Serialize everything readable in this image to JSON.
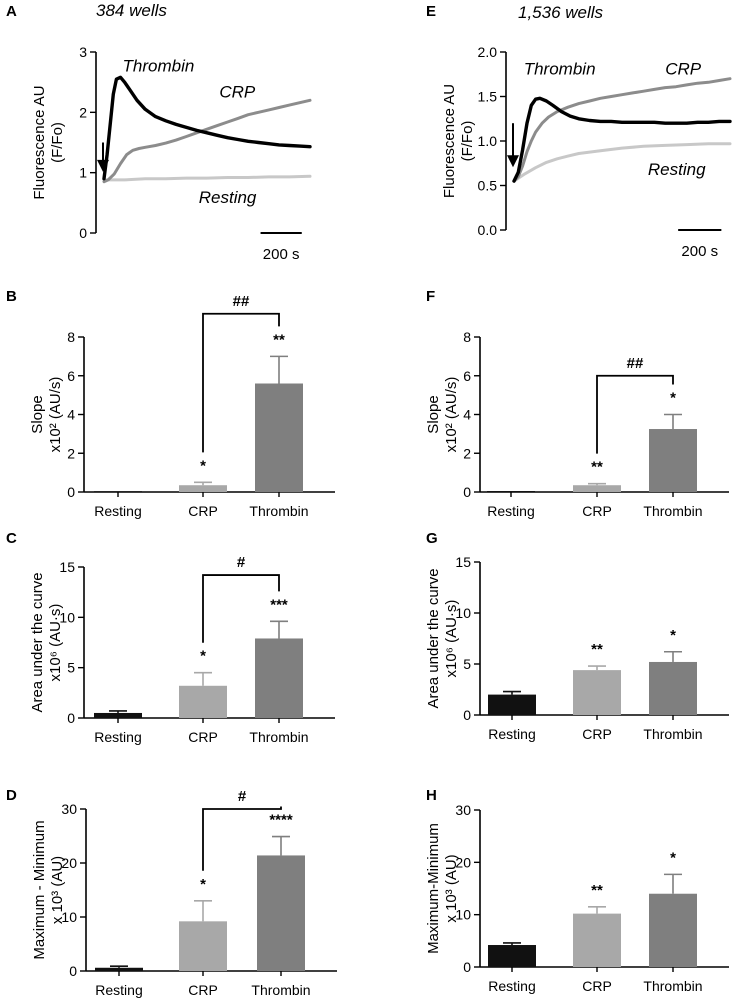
{
  "colors": {
    "resting_bar": "#111111",
    "crp_bar": "#a8a8a8",
    "thrombin_bar": "#7f7f7f",
    "axis": "#000000",
    "thrombin_trace": "#000000",
    "crp_trace": "#8c8c8c",
    "resting_trace": "#c8c8c8"
  },
  "chart_data": [
    {
      "id": "A",
      "letter": "A",
      "type": "line",
      "subtitle": "384 wells",
      "ylabel_lines": [
        "Fluorescence AU",
        "(F/Fo)"
      ],
      "ylim": [
        0,
        3
      ],
      "yticks": [
        0,
        1,
        2,
        3
      ],
      "ytick_labels": [
        "0",
        "1",
        "2",
        "3"
      ],
      "xlim": [
        0,
        1000
      ],
      "scale_bar": {
        "length": 200,
        "label": "200 s"
      },
      "series": [
        {
          "name": "Thrombin",
          "color": "#000000",
          "x": [
            0,
            15,
            30,
            45,
            60,
            80,
            100,
            130,
            160,
            200,
            250,
            300,
            350,
            400,
            450,
            500,
            550,
            600,
            650,
            700,
            750,
            800,
            850,
            900,
            950,
            1000
          ],
          "y": [
            0.9,
            1.3,
            1.8,
            2.3,
            2.55,
            2.58,
            2.5,
            2.35,
            2.2,
            2.05,
            1.93,
            1.86,
            1.8,
            1.75,
            1.7,
            1.66,
            1.62,
            1.58,
            1.55,
            1.52,
            1.5,
            1.48,
            1.46,
            1.45,
            1.44,
            1.43
          ]
        },
        {
          "name": "CRP",
          "color": "#8c8c8c",
          "x": [
            0,
            20,
            50,
            80,
            110,
            140,
            170,
            200,
            250,
            300,
            350,
            400,
            450,
            500,
            550,
            600,
            650,
            700,
            750,
            800,
            850,
            900,
            950,
            1000
          ],
          "y": [
            0.85,
            0.88,
            0.98,
            1.15,
            1.3,
            1.37,
            1.4,
            1.42,
            1.45,
            1.49,
            1.54,
            1.6,
            1.66,
            1.72,
            1.78,
            1.84,
            1.9,
            1.96,
            2.0,
            2.04,
            2.08,
            2.12,
            2.16,
            2.2
          ]
        },
        {
          "name": "Resting",
          "color": "#c8c8c8",
          "x": [
            0,
            100,
            200,
            300,
            400,
            500,
            600,
            700,
            800,
            900,
            1000
          ],
          "y": [
            0.88,
            0.88,
            0.9,
            0.9,
            0.91,
            0.91,
            0.92,
            0.92,
            0.93,
            0.93,
            0.94
          ]
        }
      ],
      "labels": [
        {
          "text": "Thrombin",
          "x": 90,
          "y": 2.68
        },
        {
          "text": "CRP",
          "x": 560,
          "y": 2.25
        },
        {
          "text": "Resting",
          "x": 460,
          "y": 0.5
        }
      ]
    },
    {
      "id": "E",
      "letter": "E",
      "type": "line",
      "subtitle": "1,536 wells",
      "ylabel_lines": [
        "Fluorescence AU",
        "(F/Fo)"
      ],
      "ylim": [
        0,
        2
      ],
      "yticks": [
        0,
        0.5,
        1,
        1.5,
        2
      ],
      "ytick_labels": [
        "0.0",
        "0.5",
        "1.0",
        "1.5",
        "2.0"
      ],
      "xlim": [
        0,
        1000
      ],
      "scale_bar": {
        "length": 200,
        "label": "200 s"
      },
      "series": [
        {
          "name": "Thrombin",
          "color": "#000000",
          "x": [
            0,
            20,
            40,
            60,
            80,
            100,
            120,
            150,
            180,
            220,
            260,
            300,
            350,
            400,
            450,
            500,
            550,
            600,
            650,
            700,
            750,
            800,
            850,
            900,
            950,
            1000
          ],
          "y": [
            0.55,
            0.65,
            0.9,
            1.2,
            1.4,
            1.47,
            1.48,
            1.45,
            1.4,
            1.33,
            1.28,
            1.25,
            1.23,
            1.22,
            1.22,
            1.21,
            1.21,
            1.21,
            1.21,
            1.2,
            1.2,
            1.2,
            1.21,
            1.21,
            1.22,
            1.22
          ]
        },
        {
          "name": "CRP",
          "color": "#8c8c8c",
          "x": [
            0,
            20,
            40,
            60,
            80,
            100,
            130,
            160,
            200,
            250,
            300,
            350,
            400,
            450,
            500,
            550,
            600,
            650,
            700,
            750,
            800,
            850,
            900,
            950,
            1000
          ],
          "y": [
            0.55,
            0.6,
            0.72,
            0.88,
            1.0,
            1.1,
            1.2,
            1.27,
            1.33,
            1.38,
            1.42,
            1.45,
            1.48,
            1.5,
            1.52,
            1.54,
            1.56,
            1.58,
            1.6,
            1.61,
            1.63,
            1.65,
            1.66,
            1.68,
            1.7
          ]
        },
        {
          "name": "Resting",
          "color": "#c8c8c8",
          "x": [
            0,
            50,
            100,
            150,
            200,
            250,
            300,
            400,
            500,
            600,
            700,
            800,
            900,
            1000
          ],
          "y": [
            0.55,
            0.63,
            0.7,
            0.76,
            0.8,
            0.83,
            0.86,
            0.89,
            0.92,
            0.94,
            0.95,
            0.96,
            0.97,
            0.97
          ]
        }
      ],
      "labels": [
        {
          "text": "Thrombin",
          "x": 45,
          "y": 1.75
        },
        {
          "text": "CRP",
          "x": 700,
          "y": 1.75
        },
        {
          "text": "Resting",
          "x": 620,
          "y": 0.62
        }
      ]
    },
    {
      "id": "B",
      "letter": "B",
      "type": "bar",
      "ylabel_lines": [
        "Slope",
        "x10² (AU/s)"
      ],
      "ylim": [
        0,
        8
      ],
      "yticks": [
        0,
        2,
        4,
        6,
        8
      ],
      "ytick_labels": [
        "0",
        "2",
        "4",
        "6",
        "8"
      ],
      "categories": [
        "Resting",
        "CRP",
        "Thrombin"
      ],
      "values": [
        0,
        0.35,
        5.6
      ],
      "errors": [
        0,
        0.15,
        1.4
      ],
      "stars": [
        "",
        "*",
        "**"
      ],
      "brackets": [
        {
          "from": 1,
          "to": 2,
          "label": "##",
          "y": 9.2
        }
      ]
    },
    {
      "id": "F",
      "letter": "F",
      "type": "bar",
      "ylabel_lines": [
        "Slope",
        "x10² (AU/s)"
      ],
      "ylim": [
        0,
        8
      ],
      "yticks": [
        0,
        2,
        4,
        6,
        8
      ],
      "ytick_labels": [
        "0",
        "2",
        "4",
        "6",
        "8"
      ],
      "categories": [
        "Resting",
        "CRP",
        "Thrombin"
      ],
      "values": [
        0.05,
        0.35,
        3.25
      ],
      "errors": [
        0,
        0.08,
        0.75
      ],
      "stars": [
        "",
        "**",
        "*"
      ],
      "brackets": [
        {
          "from": 1,
          "to": 2,
          "label": "##",
          "y": 6.0
        }
      ]
    },
    {
      "id": "C",
      "letter": "C",
      "type": "bar",
      "ylabel_lines": [
        "Area under the curve",
        "x10⁶ (AU·s)"
      ],
      "ylim": [
        0,
        15
      ],
      "yticks": [
        0,
        5,
        10,
        15
      ],
      "ytick_labels": [
        "0",
        "5",
        "10",
        "15"
      ],
      "categories": [
        "Resting",
        "CRP",
        "Thrombin"
      ],
      "values": [
        0.5,
        3.2,
        7.9
      ],
      "errors": [
        0.2,
        1.3,
        1.7
      ],
      "stars": [
        "",
        "*",
        "***"
      ],
      "brackets": [
        {
          "from": 1,
          "to": 2,
          "label": "#",
          "y": 14.2
        }
      ]
    },
    {
      "id": "G",
      "letter": "G",
      "type": "bar",
      "ylabel_lines": [
        "Area under the curve",
        "x10⁶ (AU·s)"
      ],
      "ylim": [
        0,
        15
      ],
      "yticks": [
        0,
        5,
        10,
        15
      ],
      "ytick_labels": [
        "0",
        "5",
        "10",
        "15"
      ],
      "categories": [
        "Resting",
        "CRP",
        "Thrombin"
      ],
      "values": [
        2.0,
        4.4,
        5.2
      ],
      "errors": [
        0.3,
        0.4,
        1.0
      ],
      "stars": [
        "",
        "**",
        "*"
      ],
      "brackets": []
    },
    {
      "id": "D",
      "letter": "D",
      "type": "bar",
      "ylabel_lines": [
        "Maximum - Minimum",
        "x 10³ (AU)"
      ],
      "ylim": [
        0,
        30
      ],
      "yticks": [
        0,
        10,
        20,
        30
      ],
      "ytick_labels": [
        "0",
        "10",
        "20",
        "30"
      ],
      "categories": [
        "Resting",
        "CRP",
        "Thrombin"
      ],
      "values": [
        0.6,
        9.2,
        21.4
      ],
      "errors": [
        0.3,
        3.8,
        3.5
      ],
      "stars": [
        "",
        "*",
        "****"
      ],
      "brackets": [
        {
          "from": 1,
          "to": 2,
          "label": "#",
          "y": 30.0
        }
      ]
    },
    {
      "id": "H",
      "letter": "H",
      "type": "bar",
      "ylabel_lines": [
        "Maximum-Minimum",
        "x 10³ (AU)"
      ],
      "ylim": [
        0,
        30
      ],
      "yticks": [
        0,
        10,
        20,
        30
      ],
      "ytick_labels": [
        "0",
        "10",
        "20",
        "30"
      ],
      "categories": [
        "Resting",
        "CRP",
        "Thrombin"
      ],
      "values": [
        4.2,
        10.2,
        14.0
      ],
      "errors": [
        0.4,
        1.3,
        3.7
      ],
      "stars": [
        "",
        "**",
        "*"
      ],
      "brackets": []
    }
  ]
}
